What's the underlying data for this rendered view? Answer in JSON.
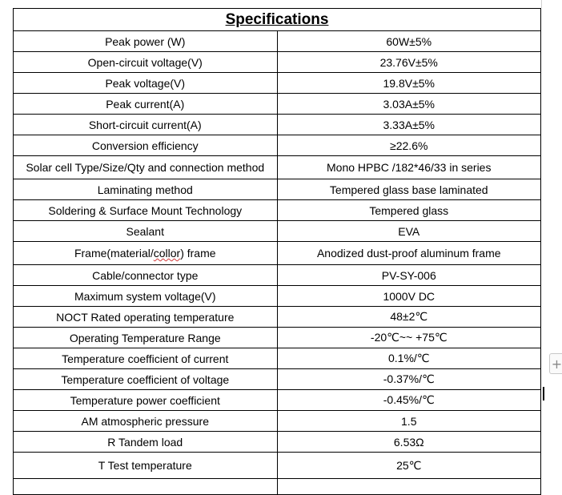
{
  "title": "Specifications",
  "rows": [
    {
      "label": "Peak power (W)",
      "value": "60W±5%"
    },
    {
      "label": "Open-circuit voltage(V)",
      "value": "23.76V±5%"
    },
    {
      "label": "Peak voltage(V)",
      "value": "19.8V±5%"
    },
    {
      "label": "Peak current(A)",
      "value": "3.03A±5%"
    },
    {
      "label": "Short-circuit current(A)",
      "value": "3.33A±5%"
    },
    {
      "label": "Conversion efficiency",
      "value": "≥22.6%"
    },
    {
      "label": "Solar cell Type/Size/Qty and connection method",
      "value": "Mono HPBC /182*46/33 in series"
    },
    {
      "label": "Laminating method",
      "value": "Tempered glass base laminated"
    },
    {
      "label": "Soldering & Surface Mount Technology",
      "value": "Tempered glass"
    },
    {
      "label": "Sealant",
      "value": "EVA"
    },
    {
      "label_prefix": "Frame(material/",
      "label_flagged": "collor",
      "label_suffix": ") frame",
      "value": "Anodized dust-proof aluminum frame"
    },
    {
      "label": "Cable/connector type",
      "value": "PV-SY-006"
    },
    {
      "label": "Maximum system voltage(V)",
      "value": "1000V DC"
    },
    {
      "label": "NOCT Rated operating temperature",
      "value": "48±2℃"
    },
    {
      "label": "Operating Temperature Range",
      "value": "-20℃~~ +75℃"
    },
    {
      "label": "Temperature coefficient of current",
      "value": "0.1%/℃"
    },
    {
      "label": "Temperature coefficient of voltage",
      "value": "-0.37%/℃"
    },
    {
      "label": "Temperature power coefficient",
      "value": "-0.45%/℃"
    },
    {
      "label": "AM atmospheric pressure",
      "value": "1.5"
    },
    {
      "label": "R Tandem load",
      "value": "6.53Ω"
    },
    {
      "label": "T Test temperature",
      "value": "25℃"
    },
    {
      "label": "",
      "value": ""
    }
  ],
  "add_column_icon": "plus-icon",
  "add_column_symbol": "+",
  "colors": {
    "border": "#000000",
    "spellcheck_underline": "#d23c3c"
  }
}
